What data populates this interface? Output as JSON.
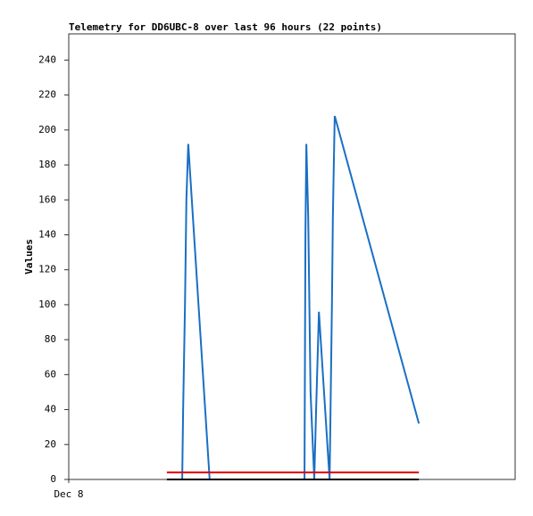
{
  "chart_data": {
    "type": "line",
    "title": "Telemetry for DD6UBC-8 over last 96 hours (22 points)",
    "y_label": "Values",
    "xlim": [
      0,
      96
    ],
    "xticks": [
      {
        "value": 0,
        "label": "Dec 8"
      }
    ],
    "ylim": [
      0,
      255
    ],
    "yticks": [
      0,
      20,
      40,
      60,
      80,
      100,
      120,
      140,
      160,
      180,
      200,
      220,
      240
    ],
    "grid": false,
    "series": [
      {
        "color": "#1a6fc4",
        "x": [
          24.4,
          24.6,
          25.0,
          25.3,
          25.7,
          30.3,
          50.7,
          50.9,
          51.1,
          51.5,
          52.0,
          52.8,
          53.2,
          53.8,
          54.9,
          56.1,
          56.4,
          56.6,
          56.8,
          57.0,
          57.2,
          75.3
        ],
        "values": [
          0,
          40,
          100,
          160,
          192,
          0,
          0,
          140,
          192,
          150,
          50,
          0,
          40,
          96,
          50,
          0,
          60,
          100,
          150,
          180,
          208,
          32
        ]
      },
      {
        "color": "#e00000",
        "x": [
          21.1,
          75.3
        ],
        "values": [
          4,
          4
        ]
      },
      {
        "color": "#000000",
        "x": [
          21.1,
          75.3
        ],
        "values": [
          0,
          0
        ]
      }
    ]
  }
}
